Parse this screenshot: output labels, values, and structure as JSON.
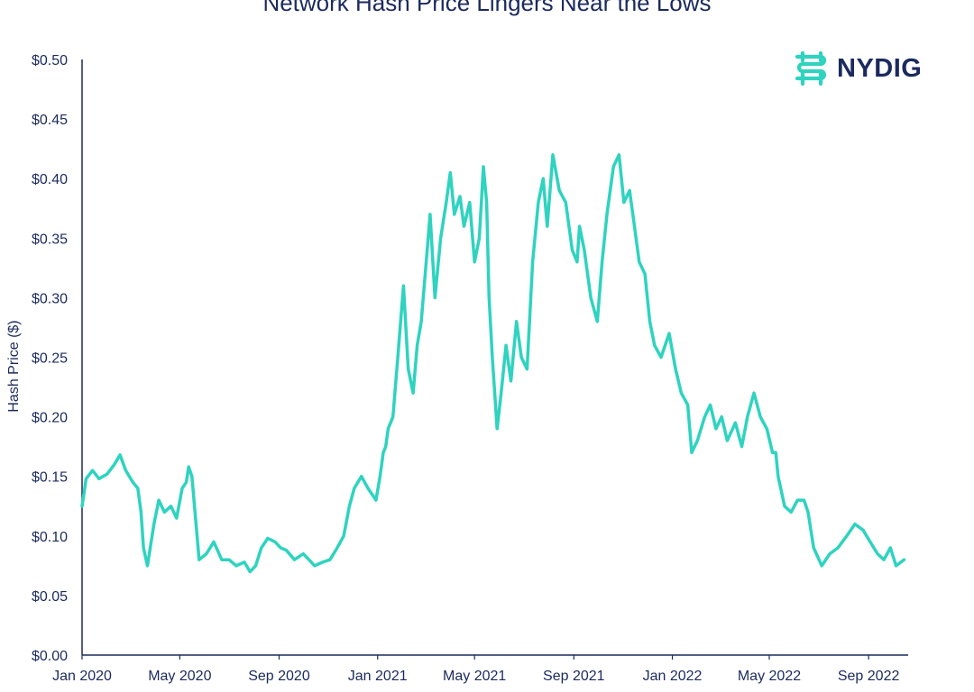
{
  "brand": {
    "name": "NYDIG",
    "mark_color": "#2fd3bf",
    "text_color": "#1b2a5e"
  },
  "chart_data": {
    "type": "line",
    "title": "Network Hash Price Lingers Near the Lows",
    "ylabel": "Hash Price ($)",
    "xlabel": "",
    "ylim": [
      0,
      0.5
    ],
    "y_ticks": [
      0.0,
      0.05,
      0.1,
      0.15,
      0.2,
      0.25,
      0.3,
      0.35,
      0.4,
      0.45,
      0.5
    ],
    "y_tick_labels": [
      "$0.00",
      "$0.05",
      "$0.10",
      "$0.15",
      "$0.20",
      "$0.25",
      "$0.30",
      "$0.35",
      "$0.40",
      "$0.45",
      "$0.50"
    ],
    "xlim": [
      "2020-01-01",
      "2022-10-20"
    ],
    "x_ticks": [
      "2020-01-01",
      "2020-05-01",
      "2020-09-01",
      "2021-01-01",
      "2021-05-01",
      "2021-09-01",
      "2022-01-01",
      "2022-05-01",
      "2022-09-01"
    ],
    "x_tick_labels": [
      "Jan 2020",
      "May 2020",
      "Sep 2020",
      "Jan 2021",
      "May 2021",
      "Sep 2021",
      "Jan 2022",
      "May 2022",
      "Sep 2022"
    ],
    "grid": false,
    "legend": "none",
    "line_color": "#2fd3bf",
    "axis_color": "#1b2a5e",
    "series": [
      {
        "x": [
          "2020-01-01",
          "2020-01-06",
          "2020-01-14",
          "2020-01-22",
          "2020-02-01",
          "2020-02-10",
          "2020-02-17",
          "2020-02-24",
          "2020-03-04",
          "2020-03-10",
          "2020-03-14",
          "2020-03-17",
          "2020-03-22",
          "2020-03-30",
          "2020-04-05",
          "2020-04-12",
          "2020-04-20",
          "2020-04-27",
          "2020-05-04",
          "2020-05-09",
          "2020-05-12",
          "2020-05-16",
          "2020-05-25",
          "2020-06-03",
          "2020-06-12",
          "2020-06-22",
          "2020-07-01",
          "2020-07-10",
          "2020-07-20",
          "2020-07-27",
          "2020-08-03",
          "2020-08-10",
          "2020-08-18",
          "2020-08-27",
          "2020-09-03",
          "2020-09-10",
          "2020-09-20",
          "2020-10-01",
          "2020-10-15",
          "2020-10-25",
          "2020-11-03",
          "2020-11-12",
          "2020-11-20",
          "2020-11-27",
          "2020-12-03",
          "2020-12-12",
          "2020-12-20",
          "2020-12-30",
          "2021-01-04",
          "2021-01-08",
          "2021-01-11",
          "2021-01-14",
          "2021-01-20",
          "2021-01-26",
          "2021-02-02",
          "2021-02-08",
          "2021-02-14",
          "2021-02-19",
          "2021-02-24",
          "2021-03-01",
          "2021-03-07",
          "2021-03-13",
          "2021-03-20",
          "2021-03-27",
          "2021-04-01",
          "2021-04-06",
          "2021-04-13",
          "2021-04-18",
          "2021-04-25",
          "2021-05-01",
          "2021-05-07",
          "2021-05-12",
          "2021-05-16",
          "2021-05-19",
          "2021-05-23",
          "2021-05-29",
          "2021-06-03",
          "2021-06-09",
          "2021-06-15",
          "2021-06-22",
          "2021-06-28",
          "2021-07-05",
          "2021-07-12",
          "2021-07-19",
          "2021-07-25",
          "2021-07-30",
          "2021-08-06",
          "2021-08-14",
          "2021-08-22",
          "2021-08-30",
          "2021-09-05",
          "2021-09-08",
          "2021-09-14",
          "2021-09-22",
          "2021-09-30",
          "2021-10-06",
          "2021-10-12",
          "2021-10-20",
          "2021-10-27",
          "2021-11-02",
          "2021-11-09",
          "2021-11-15",
          "2021-11-21",
          "2021-11-28",
          "2021-12-04",
          "2021-12-10",
          "2021-12-18",
          "2021-12-28",
          "2022-01-05",
          "2022-01-12",
          "2022-01-20",
          "2022-01-25",
          "2022-02-01",
          "2022-02-10",
          "2022-02-17",
          "2022-02-24",
          "2022-03-03",
          "2022-03-10",
          "2022-03-20",
          "2022-03-28",
          "2022-04-04",
          "2022-04-12",
          "2022-04-20",
          "2022-04-28",
          "2022-05-05",
          "2022-05-09",
          "2022-05-12",
          "2022-05-20",
          "2022-05-28",
          "2022-06-05",
          "2022-06-13",
          "2022-06-18",
          "2022-06-25",
          "2022-07-05",
          "2022-07-15",
          "2022-07-25",
          "2022-08-05",
          "2022-08-15",
          "2022-08-25",
          "2022-09-03",
          "2022-09-12",
          "2022-09-20",
          "2022-09-28",
          "2022-10-05",
          "2022-10-15"
        ],
        "y": [
          0.125,
          0.148,
          0.155,
          0.148,
          0.152,
          0.16,
          0.168,
          0.155,
          0.145,
          0.14,
          0.12,
          0.09,
          0.075,
          0.11,
          0.13,
          0.12,
          0.125,
          0.115,
          0.14,
          0.145,
          0.158,
          0.15,
          0.08,
          0.085,
          0.095,
          0.08,
          0.08,
          0.075,
          0.078,
          0.07,
          0.075,
          0.09,
          0.098,
          0.095,
          0.09,
          0.088,
          0.08,
          0.085,
          0.075,
          0.078,
          0.08,
          0.09,
          0.1,
          0.125,
          0.14,
          0.15,
          0.14,
          0.13,
          0.15,
          0.17,
          0.175,
          0.19,
          0.2,
          0.25,
          0.31,
          0.24,
          0.22,
          0.26,
          0.28,
          0.32,
          0.37,
          0.3,
          0.35,
          0.38,
          0.405,
          0.37,
          0.385,
          0.36,
          0.38,
          0.33,
          0.35,
          0.41,
          0.38,
          0.3,
          0.25,
          0.19,
          0.22,
          0.26,
          0.23,
          0.28,
          0.25,
          0.24,
          0.33,
          0.38,
          0.4,
          0.36,
          0.42,
          0.39,
          0.38,
          0.34,
          0.33,
          0.36,
          0.34,
          0.3,
          0.28,
          0.33,
          0.37,
          0.41,
          0.42,
          0.38,
          0.39,
          0.36,
          0.33,
          0.32,
          0.28,
          0.26,
          0.25,
          0.27,
          0.24,
          0.22,
          0.21,
          0.17,
          0.18,
          0.2,
          0.21,
          0.19,
          0.2,
          0.18,
          0.195,
          0.175,
          0.2,
          0.22,
          0.2,
          0.19,
          0.17,
          0.17,
          0.15,
          0.125,
          0.12,
          0.13,
          0.13,
          0.12,
          0.09,
          0.075,
          0.085,
          0.09,
          0.1,
          0.11,
          0.105,
          0.095,
          0.085,
          0.08,
          0.09,
          0.075,
          0.08
        ]
      }
    ]
  }
}
